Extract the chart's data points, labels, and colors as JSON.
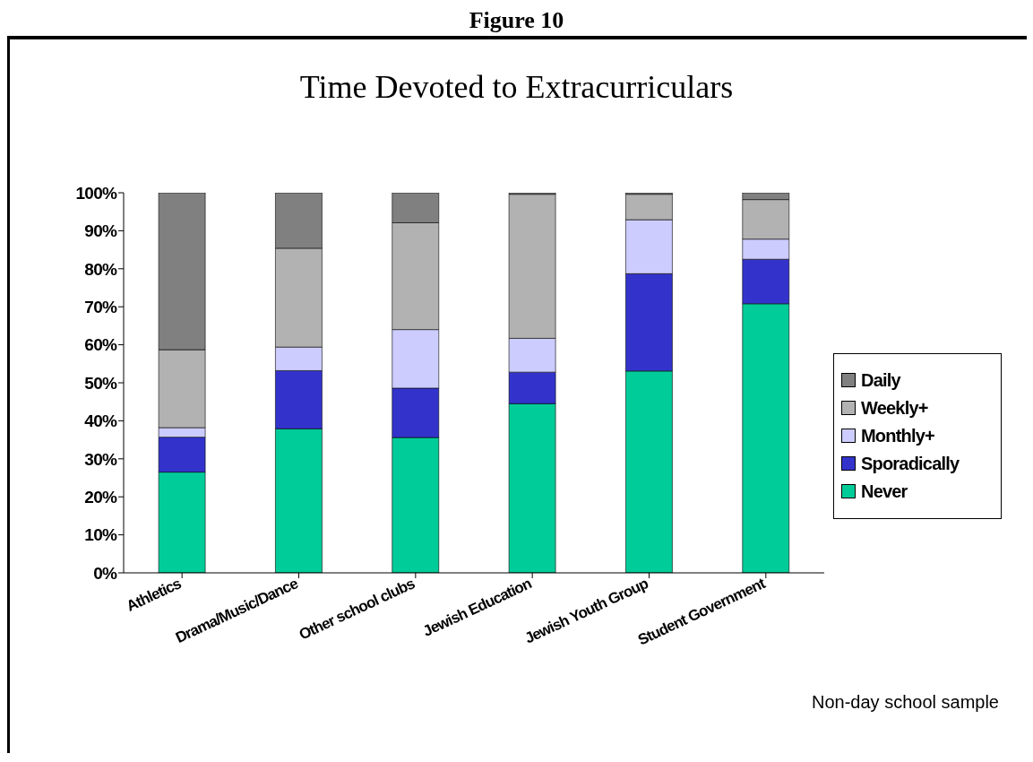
{
  "chart_data": {
    "type": "bar",
    "title": "Time Devoted to Extracurriculars",
    "stacked": true,
    "categories": [
      "Athletics",
      "Drama/Music/Dance",
      "Other school clubs",
      "Jewish Education",
      "Jewish Youth Group",
      "Student Government"
    ],
    "series": [
      {
        "name": "Never",
        "color": "#00cc99",
        "values": [
          26.5,
          37.9,
          35.6,
          44.5,
          53.1,
          70.8
        ]
      },
      {
        "name": "Sporadically",
        "color": "#3333cc",
        "values": [
          9.2,
          15.3,
          13.0,
          8.3,
          25.6,
          11.7
        ]
      },
      {
        "name": "Monthly+",
        "color": "#ccccff",
        "values": [
          2.5,
          6.2,
          15.4,
          8.9,
          14.2,
          5.3
        ]
      },
      {
        "name": "Weekly+",
        "color": "#b2b2b2",
        "values": [
          20.5,
          26.0,
          28.1,
          37.9,
          6.7,
          10.4
        ]
      },
      {
        "name": "Daily",
        "color": "#808080",
        "values": [
          41.3,
          14.6,
          7.9,
          0.4,
          0.4,
          1.8
        ]
      }
    ],
    "ylim": [
      0,
      100
    ],
    "yticks": [
      {
        "value": 0,
        "label": "0%"
      },
      {
        "value": 10,
        "label": "10%"
      },
      {
        "value": 20,
        "label": "20%"
      },
      {
        "value": 30,
        "label": "30%"
      },
      {
        "value": 40,
        "label": "40%"
      },
      {
        "value": 50,
        "label": "50%"
      },
      {
        "value": 60,
        "label": "60%"
      },
      {
        "value": 70,
        "label": "70%"
      },
      {
        "value": 80,
        "label": "80%"
      },
      {
        "value": 90,
        "label": "90%"
      },
      {
        "value": 100,
        "label": "100%"
      }
    ],
    "grid": false,
    "legend": "right",
    "annotations": [
      "Figure 10",
      "Non-day school sample"
    ]
  }
}
